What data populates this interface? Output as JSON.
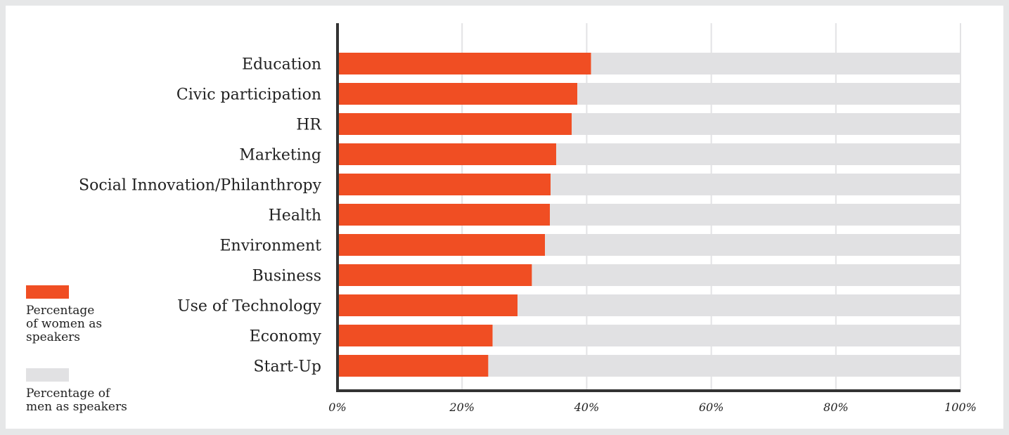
{
  "chart_data": {
    "type": "bar",
    "stacked": true,
    "orientation": "horizontal",
    "categories": [
      "Education",
      "Civic participation",
      "HR",
      "Marketing",
      "Social Innovation/Philanthropy",
      "Health",
      "Environment",
      "Business",
      "Use of Technology",
      "Economy",
      "Start-Up"
    ],
    "series": [
      {
        "name": "Percentage of women as speakers",
        "color": "#f04e23",
        "values": [
          40.7,
          38.5,
          37.6,
          35.1,
          34.2,
          34.1,
          33.3,
          31.2,
          28.9,
          24.9,
          24.2
        ]
      },
      {
        "name": "Percentage of men as speakers",
        "color": "#e1e1e3",
        "values": [
          59.3,
          61.5,
          62.4,
          64.9,
          65.8,
          65.9,
          66.7,
          68.8,
          71.1,
          75.1,
          75.8
        ]
      }
    ],
    "xlim": [
      0,
      100
    ],
    "x_ticks": [
      "0%",
      "20%",
      "40%",
      "60%",
      "80%",
      "100%"
    ],
    "grid": true,
    "legend_position": "bottom-left",
    "title": "",
    "xlabel": "",
    "ylabel": ""
  },
  "legend": {
    "women_label": "Percentage\nof women as\nspeakers",
    "men_label": "Percentage of\nmen as speakers"
  }
}
